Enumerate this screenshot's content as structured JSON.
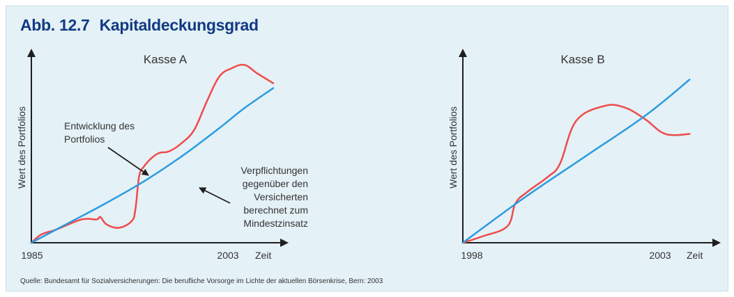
{
  "figure": {
    "number": "Abb. 12.7",
    "title": "Kapitaldeckungsgrad",
    "source": "Quelle: Bundesamt für Sozialversicherungen: Die berufliche Vorsorge im Lichte der aktuellen Börsenkrise, Bern: 2003"
  },
  "colors": {
    "portfolio": "#f04a4a",
    "liabilities": "#2b9be0",
    "title": "#123a82",
    "background": "#e4f1f6"
  },
  "chart_data": [
    {
      "type": "line",
      "title": "Kasse A",
      "ylabel": "Wert des Portfolios",
      "xlabel": "Zeit",
      "x_ticks": [
        "1985",
        "2003"
      ],
      "xlim": [
        1985,
        2005.3
      ],
      "ylim": [
        0,
        100
      ],
      "grid": false,
      "annotations": [
        {
          "text": [
            "Entwicklung des",
            "Portfolios"
          ],
          "target": "portfolio"
        },
        {
          "text": [
            "Verpflichtungen",
            "gegenüber den",
            "Versicherten",
            "berechnet zum",
            "Mindestzinsatz"
          ],
          "target": "liabilities"
        }
      ],
      "series": [
        {
          "key": "portfolio",
          "color": "#f04a4a",
          "x": [
            1985,
            1985.8,
            1987,
            1989,
            1990.2,
            1990.5,
            1991,
            1992,
            1993,
            1993.3,
            1993.6,
            1994,
            1994.6,
            1995.2,
            1996,
            1997,
            1998,
            1999,
            2000,
            2001,
            2002,
            2003,
            2004.3
          ],
          "y": [
            0,
            5,
            8,
            14,
            14,
            15.5,
            11,
            9,
            13,
            20,
            40,
            46,
            51,
            54,
            55,
            60,
            68,
            85,
            100,
            105,
            107,
            102,
            96
          ]
        },
        {
          "key": "liabilities",
          "color": "#2b9be0",
          "x": [
            1985,
            1988,
            1991,
            1994,
            1997,
            2000,
            2002,
            2004.3
          ],
          "y": [
            0,
            12,
            24,
            37,
            52,
            69,
            81,
            93
          ]
        }
      ]
    },
    {
      "type": "line",
      "title": "Kasse B",
      "ylabel": "Wert des Portfolios",
      "xlabel": "Zeit",
      "x_ticks": [
        "1998",
        "2003"
      ],
      "xlim": [
        1998,
        2004.3
      ],
      "ylim": [
        0,
        100
      ],
      "grid": false,
      "series": [
        {
          "key": "portfolio",
          "color": "#f04a4a",
          "x": [
            1998,
            1998.5,
            1999.1,
            1999.3,
            1999.6,
            2000.1,
            2000.4,
            2000.8,
            2001.5,
            2002,
            2002.5,
            2003,
            2003.6
          ],
          "y": [
            0,
            4,
            10,
            24,
            31,
            40,
            48,
            74,
            83,
            82,
            75,
            66,
            66
          ]
        },
        {
          "key": "liabilities",
          "color": "#2b9be0",
          "x": [
            1998,
            1999.5,
            2001,
            2002.5,
            2003.6
          ],
          "y": [
            0,
            27,
            52,
            77,
            99
          ]
        }
      ]
    }
  ]
}
